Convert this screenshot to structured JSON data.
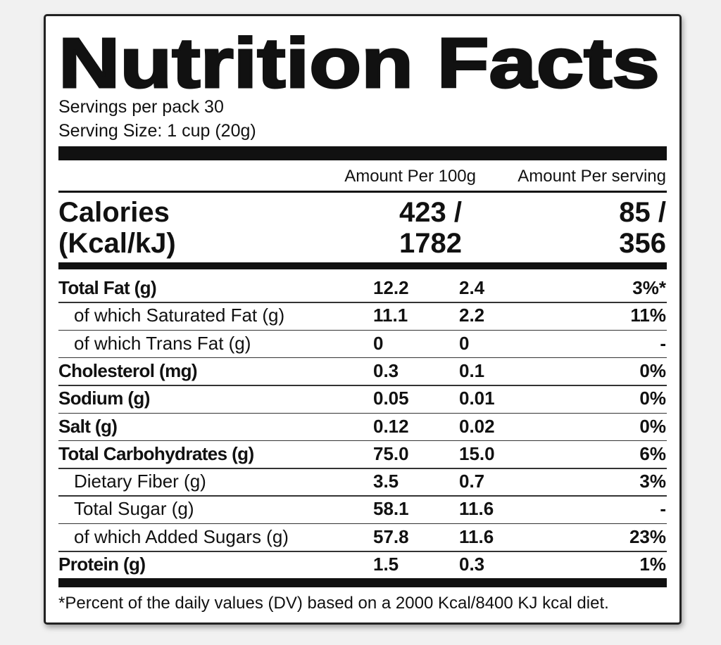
{
  "header": {
    "title": "Nutrition Facts",
    "servings_per_pack": "Servings per pack 30",
    "serving_size": "Serving Size: 1 cup (20g)"
  },
  "columns": [
    "Amount Per 100g",
    "Amount Per serving"
  ],
  "calories": {
    "label": [
      "Calories",
      "(Kcal/kJ)"
    ],
    "per_100g": [
      "423 /",
      "1782"
    ],
    "per_serving": [
      "85 /",
      "356"
    ]
  },
  "table": {
    "rows": [
      {
        "name": "Total Fat (g)",
        "per_100g": "12.2",
        "per_serving": "2.4",
        "dv": "3%*",
        "sub_rows": [
          {
            "name": "of which Saturated Fat (g)",
            "per_100g": "11.1",
            "per_serving": "2.2",
            "dv": "11%"
          },
          {
            "name": "of which Trans Fat (g)",
            "per_100g": "0",
            "per_serving": "0",
            "dv": "-"
          }
        ]
      },
      {
        "name": "Cholesterol (mg)",
        "per_100g": "0.3",
        "per_serving": "0.1",
        "dv": "0%"
      },
      {
        "name": "Sodium (g)",
        "per_100g": "0.05",
        "per_serving": "0.01",
        "dv": "0%"
      },
      {
        "name": "Salt (g)",
        "per_100g": "0.12",
        "per_serving": "0.02",
        "dv": "0%"
      },
      {
        "name": "Total Carbohydrates (g)",
        "per_100g": "75.0",
        "per_serving": "15.0",
        "dv": "6%",
        "sub_rows": [
          {
            "name": "Dietary Fiber (g)",
            "per_100g": "3.5",
            "per_serving": "0.7",
            "dv": "3%"
          },
          {
            "name": "Total Sugar (g)",
            "per_100g": "58.1",
            "per_serving": "11.6",
            "dv": "-"
          },
          {
            "name": "of which Added Sugars (g)",
            "per_100g": "57.8",
            "per_serving": "11.6",
            "dv": "23%"
          }
        ]
      },
      {
        "name": "Protein (g)",
        "per_100g": "1.5",
        "per_serving": "0.3",
        "dv": "1%"
      }
    ]
  },
  "footnote": "*Percent of the daily values (DV) based on a 2000 Kcal/8400 KJ kcal diet."
}
